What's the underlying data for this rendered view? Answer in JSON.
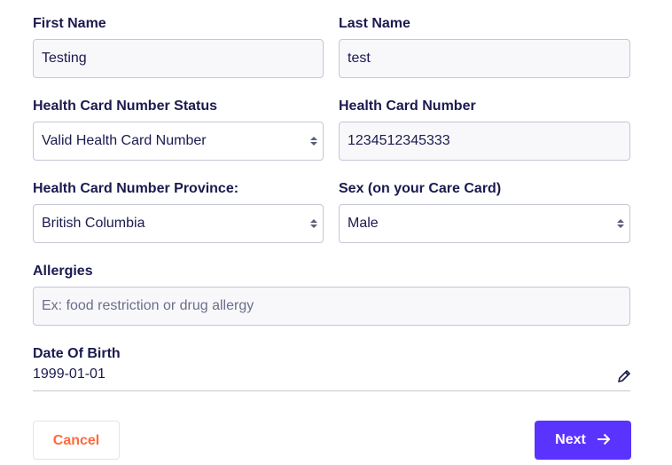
{
  "first_name": {
    "label": "First Name",
    "value": "Testing"
  },
  "last_name": {
    "label": "Last Name",
    "value": "test"
  },
  "hc_status": {
    "label": "Health Card Number Status",
    "value": "Valid Health Card Number"
  },
  "hc_number": {
    "label": "Health Card Number",
    "value": "1234512345333"
  },
  "hc_province": {
    "label": "Health Card Number Province:",
    "value": "British Columbia"
  },
  "sex": {
    "label": "Sex (on your Care Card)",
    "value": "Male"
  },
  "allergies": {
    "label": "Allergies",
    "placeholder": "Ex: food restriction or drug allergy"
  },
  "dob": {
    "label": "Date Of Birth",
    "value": "1999-01-01",
    "icon": "pencil-icon"
  },
  "buttons": {
    "cancel": "Cancel",
    "next": "Next",
    "next_icon": "arrow-right-icon"
  },
  "colors": {
    "primary": "#5b33ff",
    "cancel": "#ff6a3d",
    "text": "#1b1a4f"
  }
}
